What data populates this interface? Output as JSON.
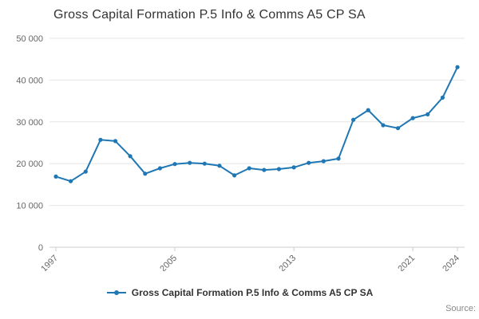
{
  "chart_data": {
    "type": "line",
    "title": "Gross Capital Formation P.5 Info & Comms A5 CP SA",
    "legend_label": "Gross Capital Formation P.5 Info & Comms A5 CP SA",
    "x": [
      1997,
      1998,
      1999,
      2000,
      2001,
      2002,
      2003,
      2004,
      2005,
      2006,
      2007,
      2008,
      2009,
      2010,
      2011,
      2012,
      2013,
      2014,
      2015,
      2016,
      2017,
      2018,
      2019,
      2020,
      2021,
      2022,
      2023,
      2024
    ],
    "values": [
      16900,
      15800,
      18100,
      25700,
      25400,
      21800,
      17600,
      18900,
      19900,
      20200,
      20000,
      19500,
      17200,
      18900,
      18500,
      18700,
      19100,
      20200,
      20600,
      21200,
      30500,
      32800,
      29200,
      28500,
      30900,
      31800,
      35800,
      43100
    ],
    "ylim": [
      0,
      50000
    ],
    "ytick_values": [
      0,
      10000,
      20000,
      30000,
      40000,
      50000
    ],
    "ytick_labels": [
      "0",
      "10 000",
      "20 000",
      "30 000",
      "40 000",
      "50 000"
    ],
    "xtick_values": [
      1997,
      2005,
      2013,
      2021,
      2024
    ],
    "grid": "horizontal",
    "legend_position": "bottom-center",
    "line_color": "#1f77b4",
    "grid_color": "#e6e6e6",
    "axis_line_color": "#cccccc",
    "axis_text_color": "#666666"
  },
  "footer": {
    "source_label": "Source:"
  }
}
